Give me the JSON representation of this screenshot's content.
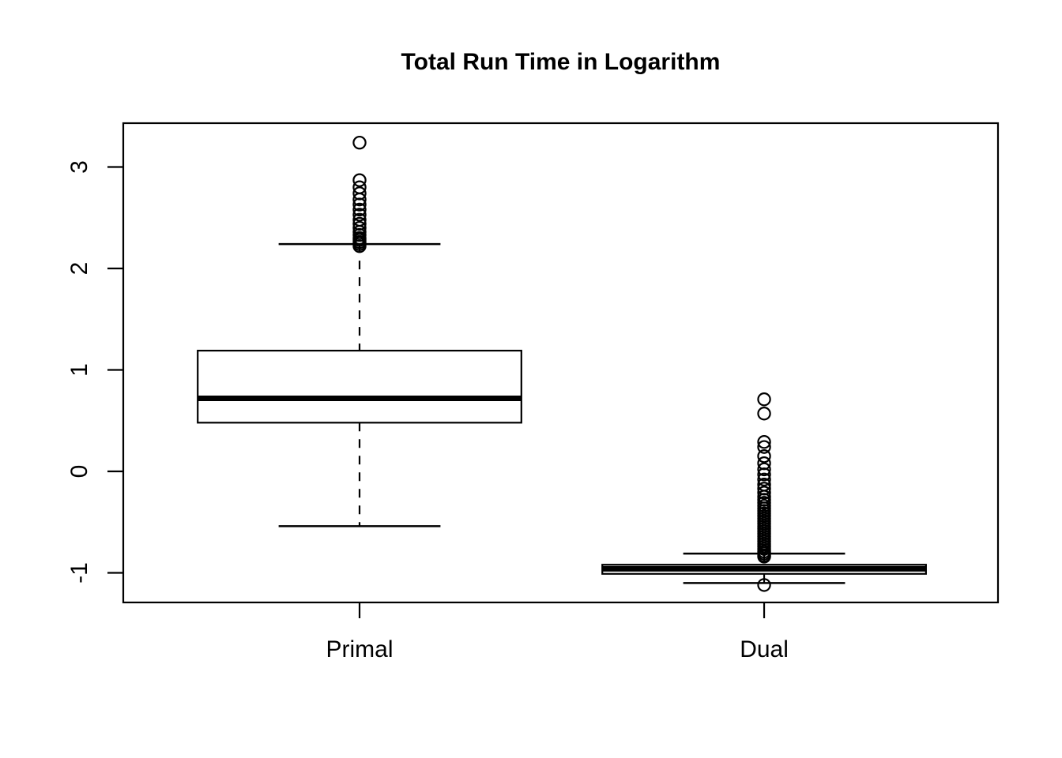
{
  "chart_data": {
    "type": "boxplot",
    "title": "Total Run Time in Logarithm",
    "xlabel": "",
    "ylabel": "",
    "categories": [
      "Primal",
      "Dual"
    ],
    "yticks": [
      3,
      2,
      1,
      0,
      -1
    ],
    "ytick_labels": [
      "3",
      "2",
      "1",
      "0",
      "-1"
    ],
    "ylim": [
      -1.292,
      3.432
    ],
    "grid": false,
    "legend": "none",
    "colors": {
      "stroke": "#000000",
      "box_fill": "#ffffff",
      "background": "#ffffff"
    },
    "series": [
      {
        "name": "Primal",
        "q1": 0.48,
        "median": 0.72,
        "q3": 1.19,
        "whisker_low": -0.54,
        "whisker_high": 2.24,
        "outliers": [
          3.24,
          2.87,
          2.8,
          2.74,
          2.68,
          2.63,
          2.58,
          2.53,
          2.48,
          2.44,
          2.4,
          2.36,
          2.33,
          2.3,
          2.28,
          2.26,
          2.24,
          2.22
        ]
      },
      {
        "name": "Dual",
        "q1": -1.01,
        "median": -0.96,
        "q3": -0.92,
        "whisker_low": -1.1,
        "whisker_high": -0.81,
        "outliers": [
          0.71,
          0.57,
          0.29,
          0.24,
          0.15,
          0.08,
          0.02,
          -0.03,
          -0.08,
          -0.13,
          -0.17,
          -0.21,
          -0.25,
          -0.28,
          -0.31,
          -0.34,
          -0.365,
          -0.39,
          -0.415,
          -0.44,
          -0.465,
          -0.49,
          -0.515,
          -0.54,
          -0.565,
          -0.59,
          -0.615,
          -0.64,
          -0.665,
          -0.69,
          -0.715,
          -0.74,
          -0.765,
          -0.79,
          -0.81,
          -0.83,
          -0.84,
          -1.12
        ]
      }
    ]
  }
}
